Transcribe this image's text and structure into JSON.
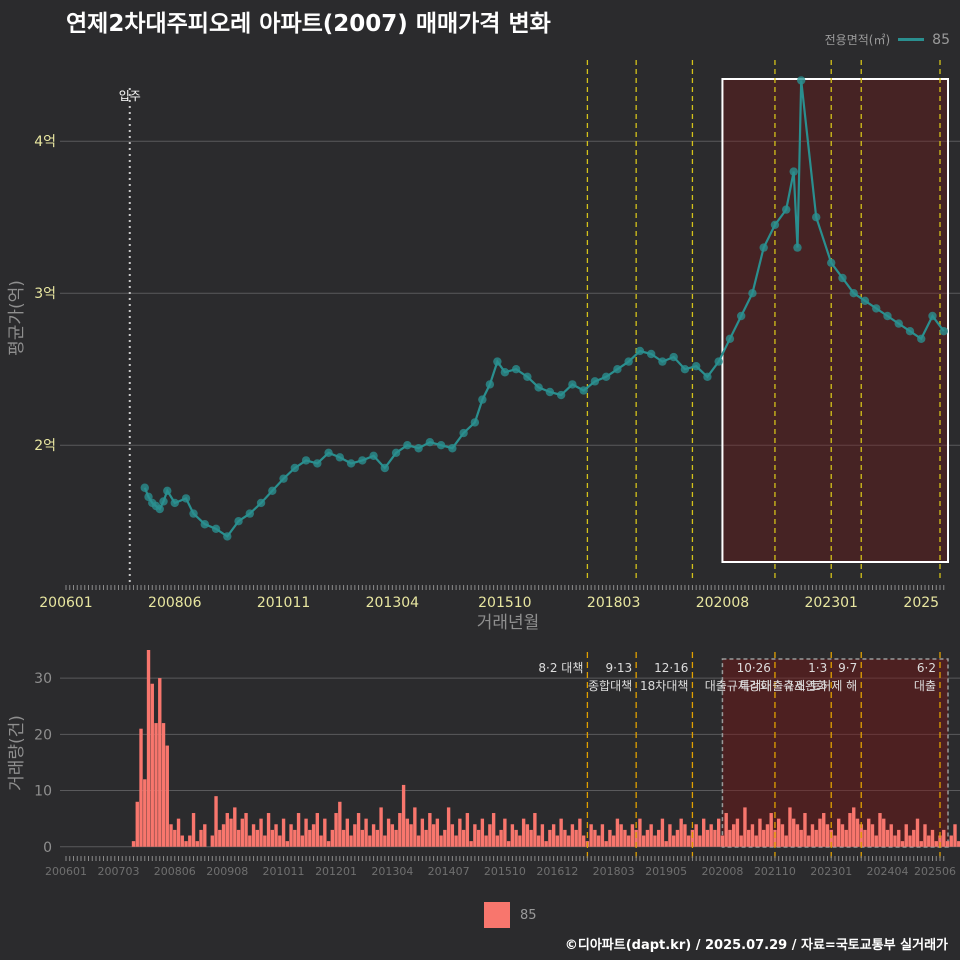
{
  "title": "연제2차대주피오레 아파트(2007) 매매가격 변화",
  "legend": {
    "title": "전용면적(㎡)",
    "series_name": "85",
    "series_color": "#2a8f8f",
    "bar_color": "#f8766d"
  },
  "source": "©디아파트(dapt.kr) / 2025.07.29 / 자료=국토교통부 실거래가",
  "chart_data": [
    {
      "type": "scatter",
      "title": "연제2차대주피오레 아파트(2007) 매매가격 변화",
      "xlabel": "거래년월",
      "ylabel": "평균가(억)",
      "x_ticks": [
        "200601",
        "200806",
        "201011",
        "201304",
        "201510",
        "201803",
        "202008",
        "202301",
        "2025"
      ],
      "y_ticks": [
        "2억",
        "3억",
        "4억"
      ],
      "ylim": [
        1.1,
        4.6
      ],
      "grid": true,
      "annotations": [
        {
          "date": "2007.06",
          "label": "입주"
        }
      ],
      "highlight": {
        "from": "2020.08",
        "to": "2025.07",
        "color": "#e03030"
      },
      "policy_lines": [
        "2017.08",
        "2018.09",
        "2019.12",
        "2021.10",
        "2023.01",
        "2023.09",
        "2025.06"
      ],
      "series": [
        {
          "name": "85",
          "points": [
            [
              "2007.10",
              1.72
            ],
            [
              "2007.11",
              1.66
            ],
            [
              "2007.12",
              1.62
            ],
            [
              "2008.01",
              1.6
            ],
            [
              "2008.02",
              1.58
            ],
            [
              "2008.03",
              1.63
            ],
            [
              "2008.04",
              1.7
            ],
            [
              "2008.06",
              1.62
            ],
            [
              "2008.09",
              1.65
            ],
            [
              "2008.11",
              1.55
            ],
            [
              "2009.02",
              1.48
            ],
            [
              "2009.05",
              1.45
            ],
            [
              "2009.08",
              1.4
            ],
            [
              "2009.11",
              1.5
            ],
            [
              "2010.02",
              1.55
            ],
            [
              "2010.05",
              1.62
            ],
            [
              "2010.08",
              1.7
            ],
            [
              "2010.11",
              1.78
            ],
            [
              "2011.02",
              1.85
            ],
            [
              "2011.05",
              1.9
            ],
            [
              "2011.08",
              1.88
            ],
            [
              "2011.11",
              1.95
            ],
            [
              "2012.02",
              1.92
            ],
            [
              "2012.05",
              1.88
            ],
            [
              "2012.08",
              1.9
            ],
            [
              "2012.11",
              1.93
            ],
            [
              "2013.02",
              1.85
            ],
            [
              "2013.05",
              1.95
            ],
            [
              "2013.08",
              2.0
            ],
            [
              "2013.11",
              1.98
            ],
            [
              "2014.02",
              2.02
            ],
            [
              "2014.05",
              2.0
            ],
            [
              "2014.08",
              1.98
            ],
            [
              "2014.11",
              2.08
            ],
            [
              "2015.02",
              2.15
            ],
            [
              "2015.04",
              2.3
            ],
            [
              "2015.06",
              2.4
            ],
            [
              "2015.08",
              2.55
            ],
            [
              "2015.10",
              2.48
            ],
            [
              "2016.01",
              2.5
            ],
            [
              "2016.04",
              2.45
            ],
            [
              "2016.07",
              2.38
            ],
            [
              "2016.10",
              2.35
            ],
            [
              "2017.01",
              2.33
            ],
            [
              "2017.04",
              2.4
            ],
            [
              "2017.07",
              2.36
            ],
            [
              "2017.10",
              2.42
            ],
            [
              "2018.01",
              2.45
            ],
            [
              "2018.04",
              2.5
            ],
            [
              "2018.07",
              2.55
            ],
            [
              "2018.10",
              2.62
            ],
            [
              "2019.01",
              2.6
            ],
            [
              "2019.04",
              2.55
            ],
            [
              "2019.07",
              2.58
            ],
            [
              "2019.10",
              2.5
            ],
            [
              "2020.01",
              2.52
            ],
            [
              "2020.04",
              2.45
            ],
            [
              "2020.07",
              2.55
            ],
            [
              "2020.10",
              2.7
            ],
            [
              "2021.01",
              2.85
            ],
            [
              "2021.04",
              3.0
            ],
            [
              "2021.07",
              3.3
            ],
            [
              "2021.10",
              3.45
            ],
            [
              "2022.01",
              3.55
            ],
            [
              "2022.03",
              3.8
            ],
            [
              "2022.04",
              3.3
            ],
            [
              "2022.05",
              4.4
            ],
            [
              "2022.09",
              3.5
            ],
            [
              "2023.01",
              3.2
            ],
            [
              "2023.04",
              3.1
            ],
            [
              "2023.07",
              3.0
            ],
            [
              "2023.10",
              2.95
            ],
            [
              "2024.01",
              2.9
            ],
            [
              "2024.04",
              2.85
            ],
            [
              "2024.07",
              2.8
            ],
            [
              "2024.10",
              2.75
            ],
            [
              "2025.01",
              2.7
            ],
            [
              "2025.04",
              2.85
            ],
            [
              "2025.07",
              2.75
            ]
          ]
        }
      ]
    },
    {
      "type": "bar",
      "xlabel": "",
      "ylabel": "거래량(건)",
      "x_ticks": [
        "200601",
        "200703",
        "200806",
        "200908",
        "201011",
        "201201",
        "201304",
        "201407",
        "201510",
        "201612",
        "201803",
        "201905",
        "202008",
        "202110",
        "202301",
        "202404",
        "202506"
      ],
      "y_ticks": [
        "0",
        "10",
        "20",
        "30"
      ],
      "ylim": [
        -2,
        35
      ],
      "grid": true,
      "policies": [
        {
          "date": "2017.08",
          "label": "8·2 대책",
          "sub": ""
        },
        {
          "date": "2018.09",
          "label": "9·13",
          "sub": "종합대책"
        },
        {
          "date": "2019.12",
          "label": "12·16",
          "sub": "18차대책"
        },
        {
          "date": "2021.10",
          "label": "10·26",
          "sub": "대출규제강화"
        },
        {
          "date": "2023.01",
          "label": "1·3",
          "sub": "규제완화"
        },
        {
          "date": "2023.09",
          "label": "9·7",
          "sub": "특례대출축소 토허제 해"
        },
        {
          "date": "2025.06",
          "label": "6·2",
          "sub": "대출"
        }
      ],
      "monthly_volume": {
        "start": "2006.01",
        "values": [
          0,
          0,
          0,
          0,
          0,
          0,
          0,
          0,
          0,
          0,
          0,
          0,
          0,
          0,
          0,
          0,
          0,
          0,
          1,
          8,
          21,
          12,
          35,
          29,
          22,
          30,
          22,
          18,
          4,
          3,
          5,
          2,
          1,
          2,
          6,
          1,
          3,
          4,
          0,
          2,
          9,
          3,
          4,
          6,
          5,
          7,
          3,
          5,
          6,
          2,
          4,
          3,
          5,
          2,
          6,
          3,
          4,
          2,
          5,
          1,
          4,
          3,
          6,
          2,
          5,
          3,
          4,
          6,
          2,
          5,
          1,
          3,
          6,
          8,
          3,
          5,
          2,
          4,
          6,
          3,
          5,
          2,
          4,
          3,
          7,
          2,
          5,
          4,
          3,
          6,
          11,
          5,
          4,
          7,
          2,
          5,
          3,
          6,
          4,
          5,
          2,
          3,
          7,
          4,
          2,
          5,
          3,
          6,
          1,
          4,
          3,
          5,
          2,
          4,
          6,
          2,
          3,
          5,
          1,
          4,
          3,
          2,
          5,
          4,
          3,
          6,
          2,
          4,
          1,
          3,
          4,
          2,
          5,
          3,
          2,
          4,
          3,
          5,
          2,
          1,
          4,
          3,
          2,
          4,
          1,
          3,
          2,
          5,
          4,
          3,
          2,
          4,
          3,
          5,
          2,
          3,
          4,
          2,
          3,
          5,
          1,
          4,
          2,
          3,
          5,
          4,
          2,
          3,
          4,
          2,
          5,
          3,
          4,
          3,
          5,
          2,
          6,
          3,
          4,
          5,
          2,
          7,
          3,
          4,
          2,
          5,
          3,
          4,
          6,
          3,
          5,
          4,
          2,
          7,
          5,
          4,
          3,
          6,
          2,
          4,
          3,
          5,
          6,
          4,
          3,
          2,
          5,
          4,
          3,
          6,
          7,
          5,
          4,
          3,
          5,
          4,
          2,
          6,
          5,
          3,
          4,
          2,
          3,
          1,
          4,
          2,
          3,
          5,
          1,
          4,
          2,
          3,
          1,
          2,
          3,
          1,
          2,
          4,
          1,
          3,
          2,
          2,
          3,
          1,
          2,
          3,
          1,
          2,
          3,
          2,
          4,
          3,
          2,
          3,
          2,
          4,
          3,
          5,
          2,
          3,
          3,
          4,
          2,
          3,
          6,
          4,
          3,
          7,
          5,
          2,
          3
        ]
      }
    }
  ]
}
